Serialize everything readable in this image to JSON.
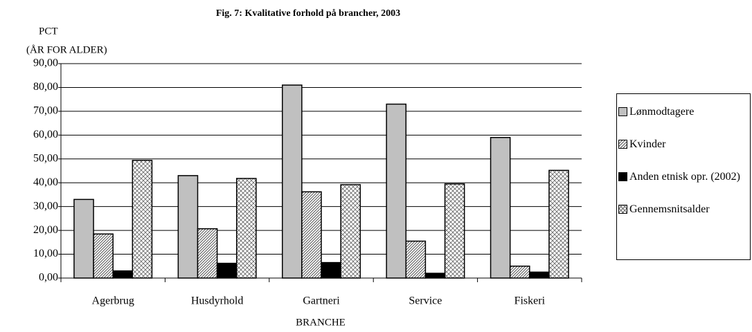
{
  "chart_data": {
    "type": "bar",
    "title": "Fig. 7: Kvalitative forhold på brancher, 2003",
    "y_label": [
      "PCT",
      "(ÅR FOR ALDER)"
    ],
    "x_label": "BRANCHE",
    "categories": [
      "Agerbrug",
      "Husdyrhold",
      "Gartneri",
      "Service",
      "Fiskeri"
    ],
    "series": [
      {
        "name": "Lønmodtagere",
        "color": "#c0c0c0",
        "pattern": "solid",
        "values": [
          33,
          43,
          81,
          73,
          59
        ]
      },
      {
        "name": "Kvinder",
        "color": "#ffffff",
        "pattern": "diagonal",
        "values": [
          18.5,
          20.7,
          36.2,
          15.5,
          5
        ]
      },
      {
        "name": "Anden etnisk opr. (2002)",
        "color": "#000000",
        "pattern": "solid",
        "values": [
          3,
          6.2,
          6.5,
          2,
          2.5
        ]
      },
      {
        "name": "Gennemsnitsalder",
        "color": "#ffffff",
        "pattern": "crosshatch",
        "values": [
          49.4,
          41.8,
          39.2,
          39.5,
          45.2
        ]
      }
    ],
    "ylim": [
      0,
      90
    ],
    "yticks": [
      {
        "value": 0,
        "label": "0,00"
      },
      {
        "value": 10,
        "label": "10,00"
      },
      {
        "value": 20,
        "label": "20,00"
      },
      {
        "value": 30,
        "label": "30,00"
      },
      {
        "value": 40,
        "label": "40,00"
      },
      {
        "value": 50,
        "label": "50,00"
      },
      {
        "value": 60,
        "label": "60,00"
      },
      {
        "value": 70,
        "label": "70,00"
      },
      {
        "value": 80,
        "label": "80,00"
      },
      {
        "value": 90,
        "label": "90,00"
      }
    ],
    "grid": true,
    "legend": "right"
  }
}
